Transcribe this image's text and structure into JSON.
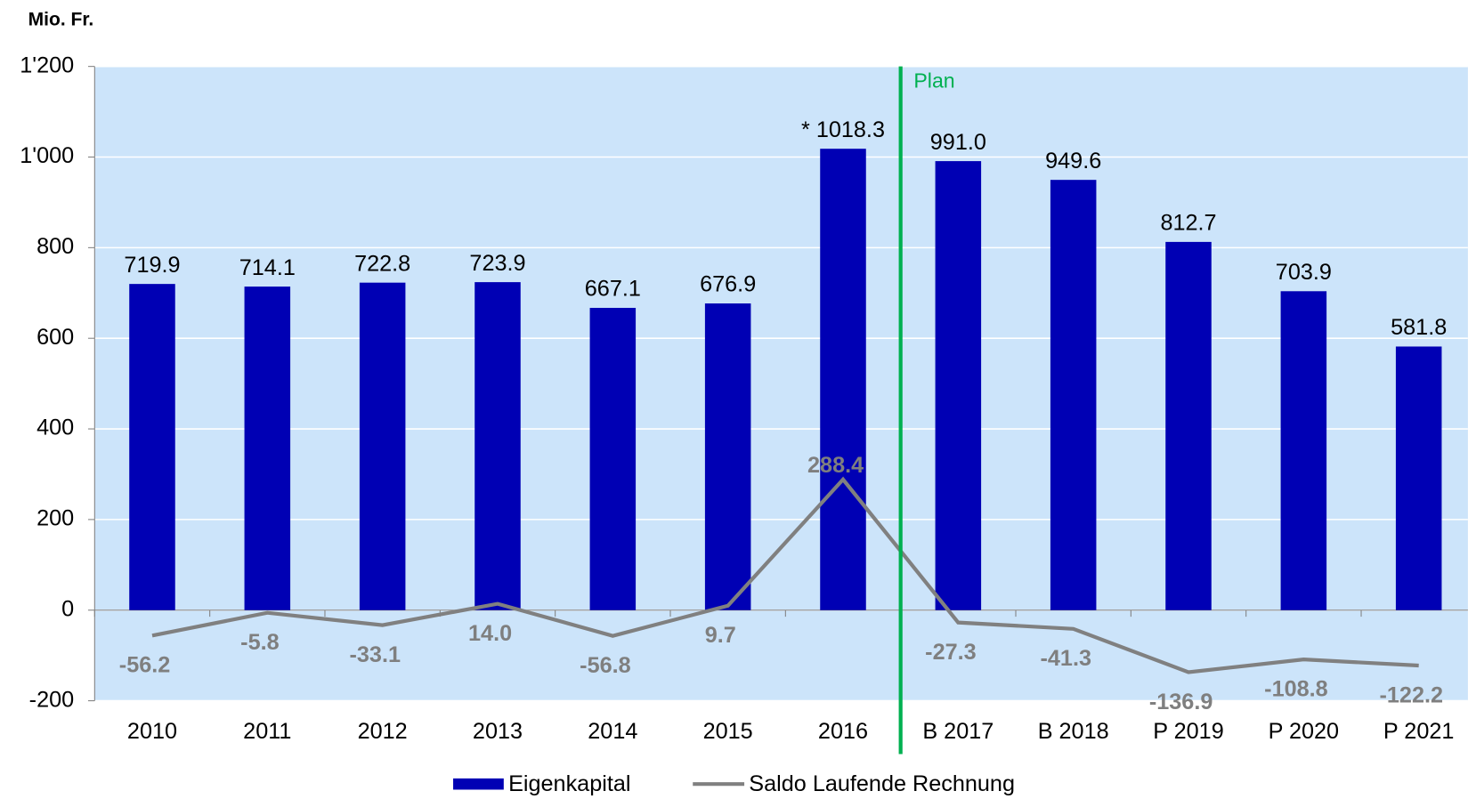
{
  "chart_data": {
    "type": "bar",
    "unit_label": "Mio. Fr.",
    "annotation": "Plan",
    "categories": [
      "2010",
      "2011",
      "2012",
      "2013",
      "2014",
      "2015",
      "2016",
      "B 2017",
      "B 2018",
      "P 2019",
      "P 2020",
      "P 2021"
    ],
    "series": [
      {
        "name": "Eigenkapital",
        "type": "bar",
        "color": "#0000b4",
        "values": [
          719.9,
          714.1,
          722.8,
          723.9,
          667.1,
          676.9,
          1018.3,
          991.0,
          949.6,
          812.7,
          703.9,
          581.8
        ],
        "value_labels": [
          "719.9",
          "714.1",
          "722.8",
          "723.9",
          "667.1",
          "676.9",
          "* 1018.3",
          "991.0",
          "949.6",
          "812.7",
          "703.9",
          "581.8"
        ]
      },
      {
        "name": "Saldo Laufende Rechnung",
        "type": "line",
        "color": "#808080",
        "values": [
          -56.2,
          -5.8,
          -33.1,
          14.0,
          -56.8,
          9.7,
          288.4,
          -27.3,
          -41.3,
          -136.9,
          -108.8,
          -122.2
        ],
        "value_labels": [
          "-56.2",
          "-5.8",
          "-33.1",
          "14.0",
          "-56.8",
          "9.7",
          "288.4",
          "-27.3",
          "-41.3",
          "-136.9",
          "-108.8",
          "-122.2"
        ]
      }
    ],
    "ylim": [
      -200,
      1200
    ],
    "yticks": [
      -200,
      0,
      200,
      400,
      600,
      800,
      {
        "value": 1000,
        "label": "1'000"
      },
      {
        "value": 1200,
        "label": "1'200"
      }
    ],
    "background": "#cce4fa"
  }
}
